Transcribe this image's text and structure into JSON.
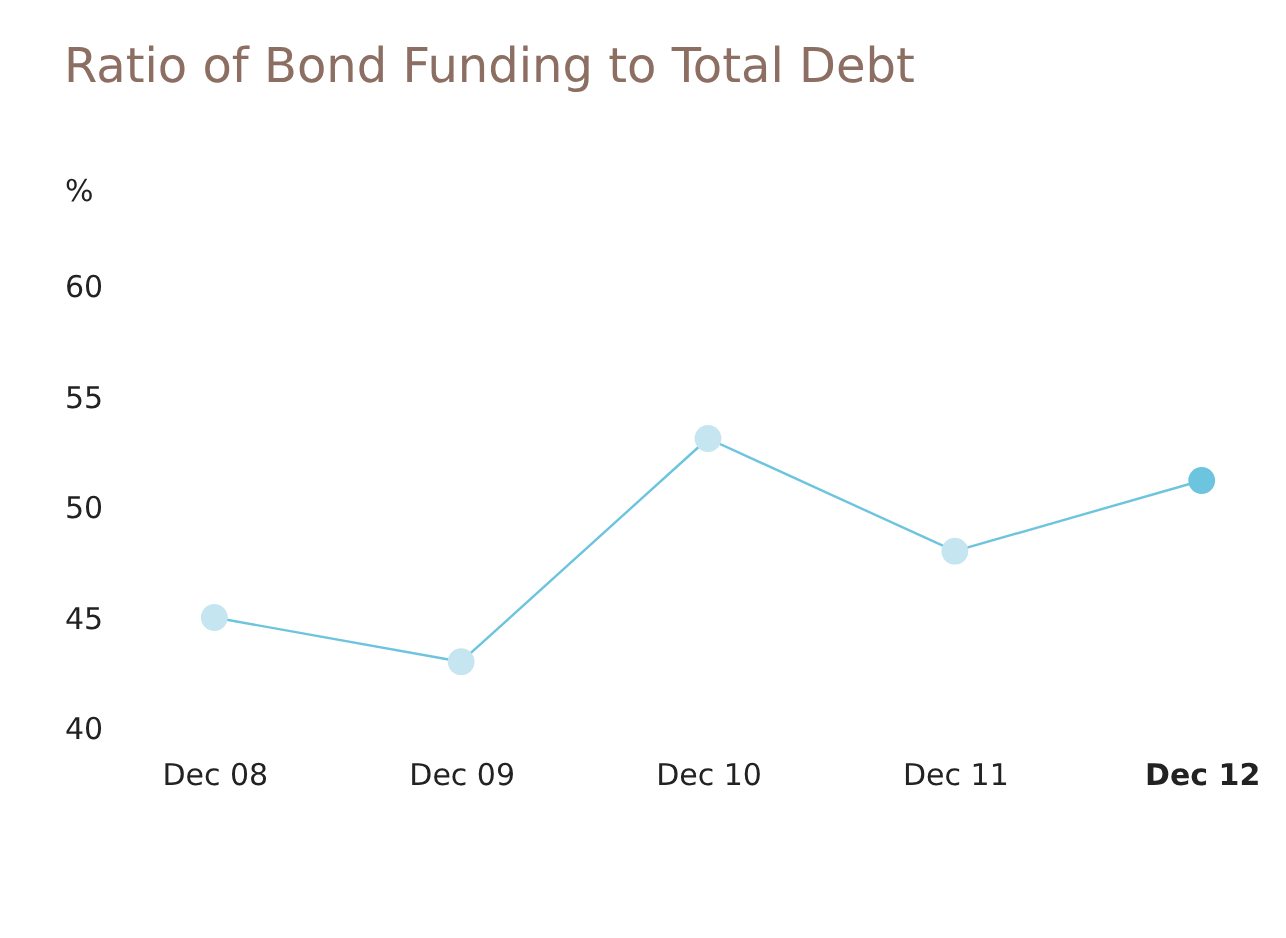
{
  "chart_data": {
    "type": "line",
    "title": "Ratio of Bond Funding to Total Debt",
    "ylabel": "%",
    "categories": [
      "Dec 08",
      "Dec 09",
      "Dec 10",
      "Dec 11",
      "Dec 12"
    ],
    "series": [
      {
        "color": "#6cc4de",
        "colors": [
          "#c5e5f0",
          "#c5e5f0",
          "#c5e5f0",
          "#c5e5f0",
          "#6cc4de"
        ],
        "values": [
          45,
          43,
          53.1,
          48,
          51.2
        ]
      }
    ],
    "ylim": [
      40,
      60
    ],
    "yticks": [
      40,
      45,
      50,
      55,
      60
    ],
    "marker": "circle",
    "grid": false
  }
}
